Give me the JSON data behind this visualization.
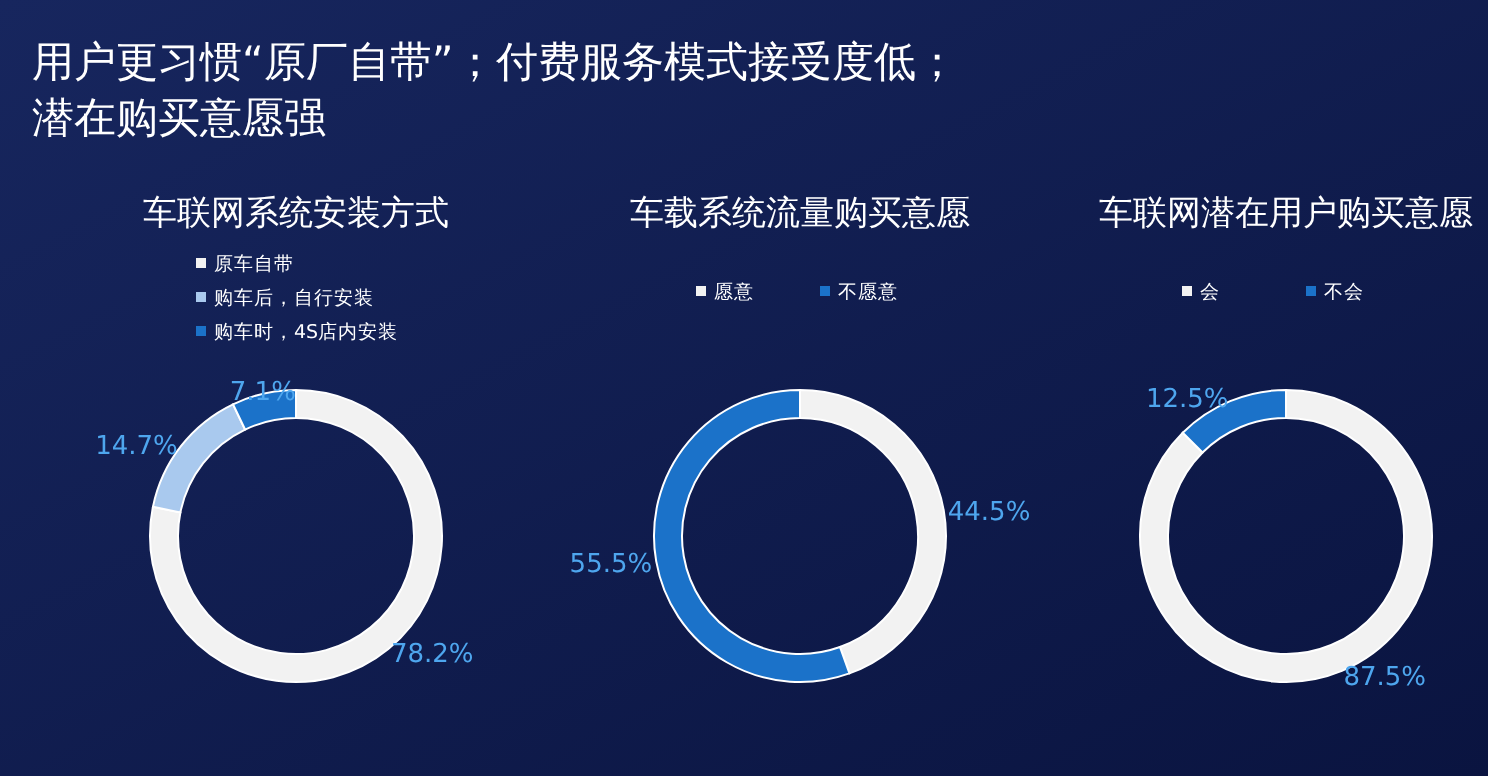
{
  "chart_data": [
    {
      "type": "other",
      "title": "用户更习惯“原厂自带”；付费服务模式接受度低；潜在购买意愿强"
    },
    {
      "type": "donut",
      "title": "车联网系统安装方式",
      "categories": [
        "原车自带",
        "购车后，自行安装",
        "购车时，4S店内安装"
      ],
      "values": [
        78.2,
        14.7,
        7.1
      ],
      "colors": [
        "#f2f2f2",
        "#a9c9ee",
        "#1b72c9"
      ],
      "legend": "top",
      "value_labels": [
        "78.2%",
        "14.7%",
        "7.1%"
      ]
    },
    {
      "type": "donut",
      "title": "车载系统流量购买意愿",
      "categories": [
        "愿意",
        "不愿意"
      ],
      "values": [
        44.5,
        55.5
      ],
      "colors": [
        "#f2f2f2",
        "#1b72c9"
      ],
      "legend": "top",
      "value_labels": [
        "44.5%",
        "55.5%"
      ]
    },
    {
      "type": "donut",
      "title": "车联网潜在用户购买意愿",
      "categories": [
        "会",
        "不会"
      ],
      "values": [
        87.5,
        12.5
      ],
      "colors": [
        "#f2f2f2",
        "#1b72c9"
      ],
      "legend": "top",
      "value_labels": [
        "87.5%",
        "12.5%"
      ]
    }
  ]
}
